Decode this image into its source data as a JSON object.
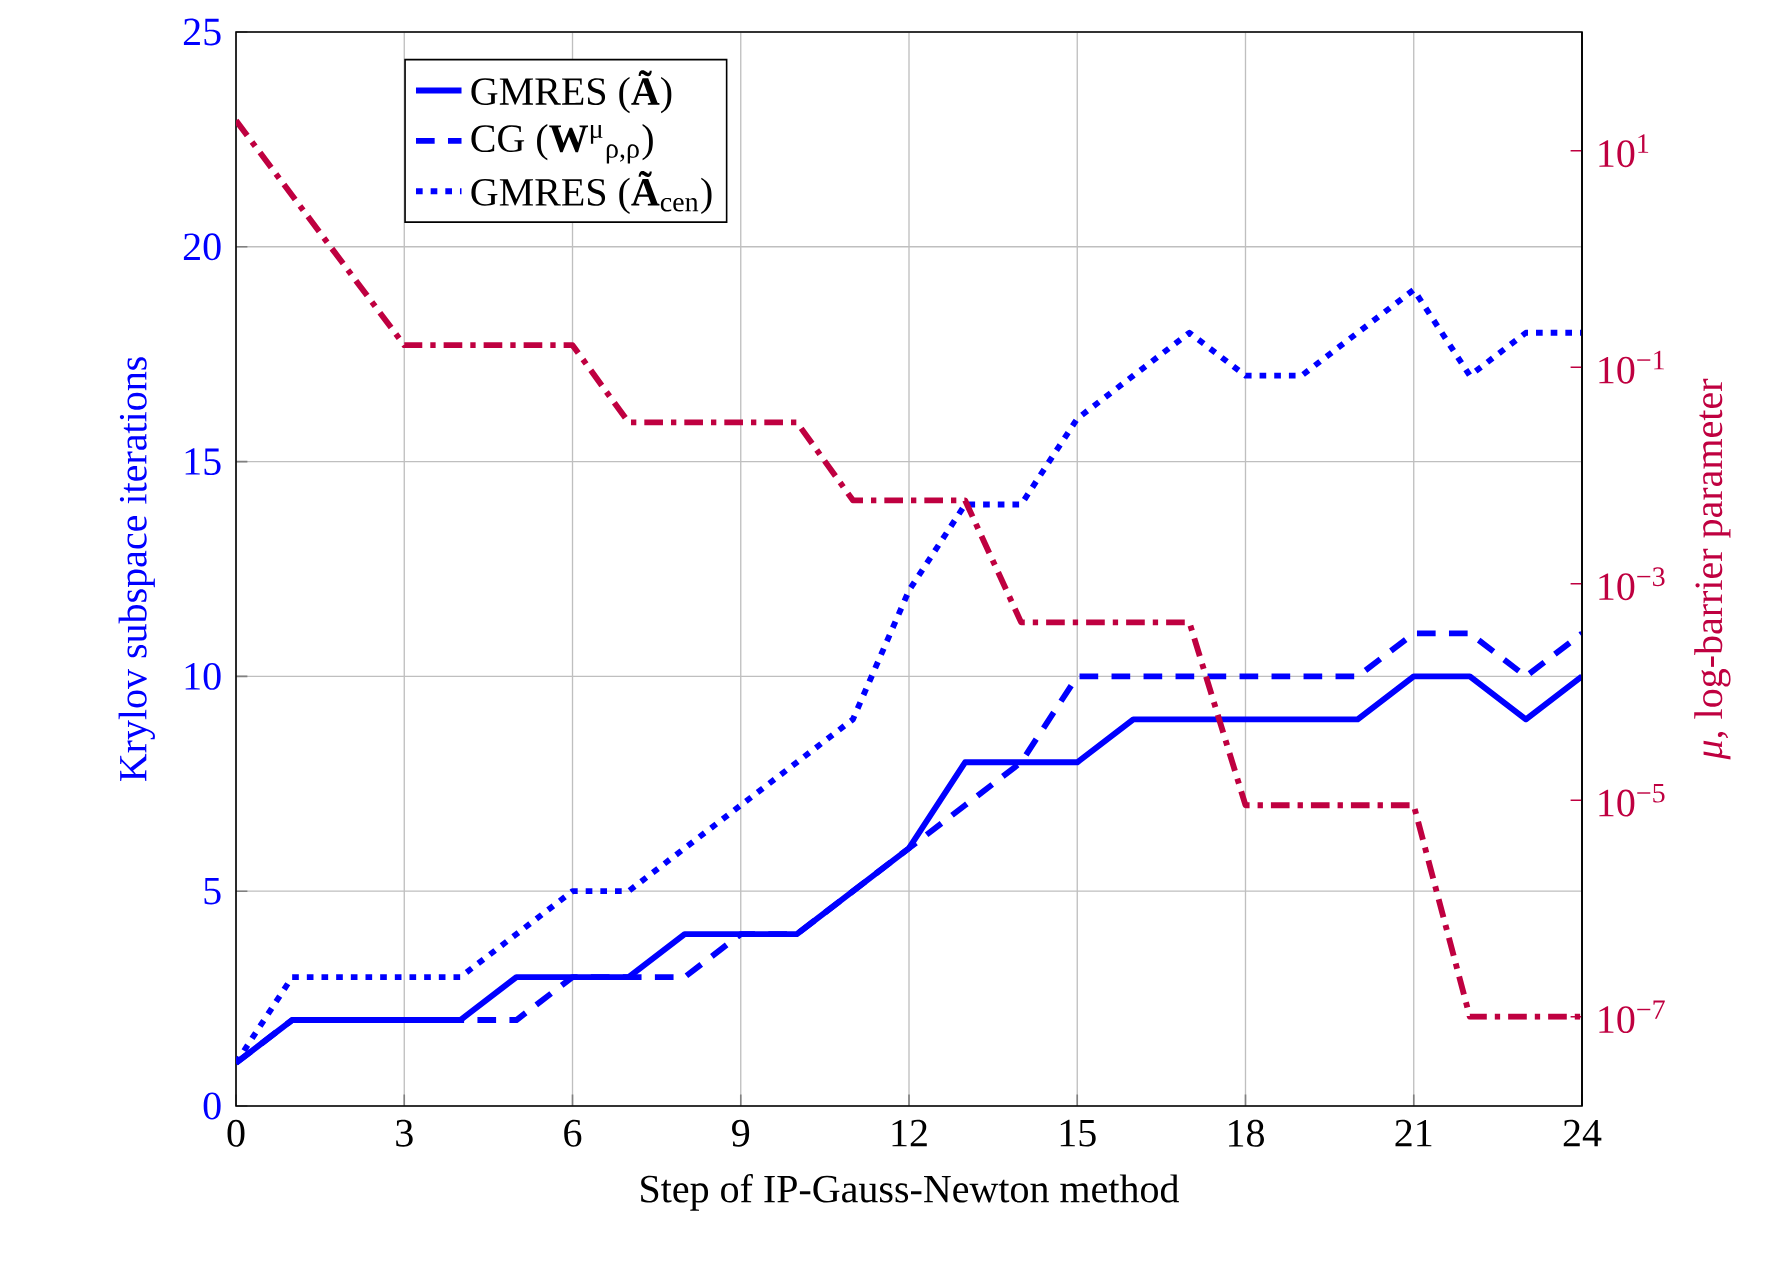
{
  "chart_data": {
    "type": "line",
    "xlabel": "Step of IP-Gauss-Newton method",
    "ylabel": "Krylov subspace iterations",
    "y2label": "*μ*, log-barrier parameter",
    "x": [
      0,
      1,
      2,
      3,
      4,
      5,
      6,
      7,
      8,
      9,
      10,
      11,
      12,
      13,
      14,
      15,
      16,
      17,
      18,
      19,
      20,
      21,
      22,
      23,
      24
    ],
    "series": [
      {
        "name": "GMRES (**Ã**)",
        "color": "#0000ff",
        "line_style": "solid",
        "values": [
          1,
          2,
          2,
          2,
          2,
          3,
          3,
          3,
          4,
          4,
          4,
          5,
          6,
          8,
          8,
          8,
          9,
          9,
          9,
          9,
          9,
          10,
          10,
          9,
          10
        ]
      },
      {
        "name": "CG (**W**$^{μ}$$_{ρ,ρ}$)",
        "color": "#0000ff",
        "line_style": "dashed",
        "values": [
          1,
          2,
          2,
          2,
          2,
          2,
          3,
          3,
          3,
          4,
          4,
          5,
          6,
          7,
          8,
          10,
          10,
          10,
          10,
          10,
          10,
          11,
          11,
          10,
          11
        ]
      },
      {
        "name": "GMRES (**Ã**$_{cen}$)",
        "color": "#0000ff",
        "line_style": "dotted",
        "values": [
          1,
          3,
          3,
          3,
          3,
          4,
          5,
          5,
          6,
          7,
          8,
          9,
          12,
          14,
          14,
          16,
          17,
          18,
          17,
          17,
          18,
          19,
          17,
          18,
          18
        ]
      },
      {
        "color": "#bf0040",
        "line_style": "dashdot",
        "axis": "y2",
        "x": [
          0,
          3,
          6,
          7,
          10,
          11,
          13,
          14,
          17,
          18,
          21,
          22,
          24
        ],
        "values": [
          19,
          0.16,
          0.16,
          0.031,
          0.031,
          0.0059,
          0.0059,
          0.00044,
          0.00044,
          9e-06,
          9e-06,
          1e-07,
          1e-07
        ]
      }
    ],
    "xlim": [
      0,
      24
    ],
    "xticks": [
      0,
      3,
      6,
      9,
      12,
      15,
      18,
      21,
      24
    ],
    "ylim": [
      0,
      25
    ],
    "yticks": [
      0,
      5,
      10,
      15,
      20,
      25
    ],
    "y2lim": [
      1.5e-08,
      125
    ],
    "log": "y2",
    "y2ticks": [
      {
        "value": 10,
        "label": "10$^{1}$"
      },
      {
        "value": 0.1,
        "label": "10$^{−1}$"
      },
      {
        "value": 0.001,
        "label": "10$^{−3}$"
      },
      {
        "value": 1e-05,
        "label": "10$^{−5}$"
      },
      {
        "value": 1e-07,
        "label": "10$^{−7}$"
      }
    ],
    "grid": true,
    "legend": "top left",
    "marker": "none"
  }
}
